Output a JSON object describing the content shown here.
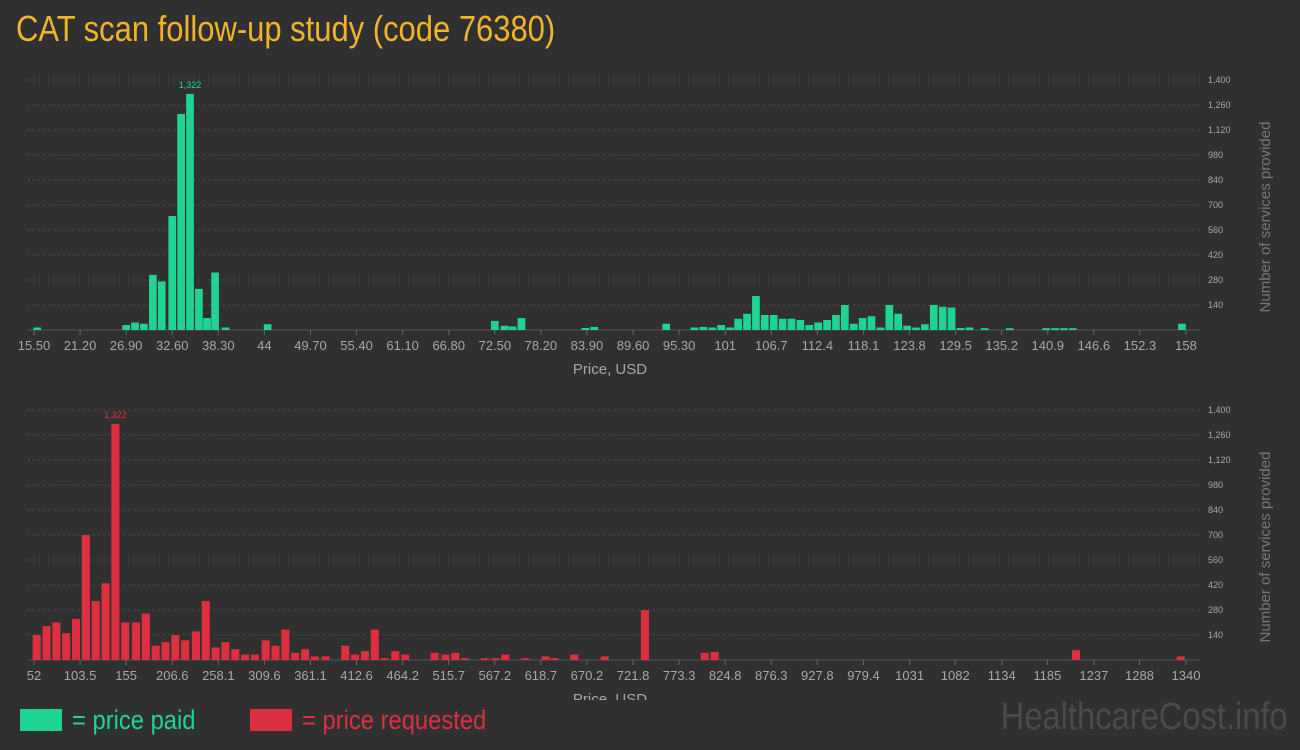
{
  "title": "CAT scan follow-up study (code 76380)",
  "watermark": "HealthcareCost.info",
  "colors": {
    "background": "#303030",
    "title": "#f0b429",
    "paid": "#1fd493",
    "requested": "#dc3040",
    "grid": "#4a4a4a",
    "text": "#a8a8a8"
  },
  "legend": [
    {
      "label": "= price paid",
      "color": "#1fd493"
    },
    {
      "label": "= price requested",
      "color": "#dc3040"
    }
  ],
  "chart_data": [
    {
      "type": "bar",
      "name": "price paid",
      "color": "#1fd493",
      "xlabel": "Price, USD",
      "ylabel": "Number of services provided",
      "ylim": [
        0,
        1400
      ],
      "yticks": [
        140,
        280,
        420,
        560,
        700,
        840,
        980,
        1120,
        1260,
        1400
      ],
      "ytick_labels": [
        "140",
        "280",
        "420",
        "560",
        "700",
        "840",
        "980",
        "1,120",
        "1,260",
        "1,400"
      ],
      "xlim": [
        15.5,
        158.0
      ],
      "xticks": [
        15.5,
        21.2,
        26.9,
        32.6,
        38.3,
        44.0,
        49.7,
        55.4,
        61.1,
        66.8,
        72.5,
        78.2,
        83.9,
        89.6,
        95.3,
        101.0,
        106.7,
        112.4,
        118.1,
        123.8,
        129.5,
        135.2,
        140.9,
        146.6,
        152.3,
        158.0
      ],
      "xtick_labels": [
        "15.50",
        "21.20",
        "26.90",
        "32.60",
        "38.30",
        "44",
        "49.70",
        "55.40",
        "61.10",
        "66.80",
        "72.50",
        "78.20",
        "83.90",
        "89.60",
        "95.30",
        "101",
        "106.7",
        "112.4",
        "118.1",
        "123.8",
        "129.5",
        "135.2",
        "140.9",
        "146.6",
        "152.3",
        "158"
      ],
      "peak_label": "1,322",
      "bar_width": 1.0,
      "x": [
        15.9,
        26.9,
        28.0,
        29.1,
        30.2,
        31.3,
        32.6,
        33.7,
        34.8,
        35.9,
        36.9,
        37.9,
        39.2,
        44.4,
        72.5,
        73.7,
        74.7,
        75.8,
        83.7,
        84.8,
        93.7,
        97.2,
        98.3,
        99.4,
        100.5,
        101.6,
        102.6,
        103.7,
        104.8,
        105.9,
        107.0,
        108.1,
        109.2,
        110.3,
        111.4,
        112.5,
        113.6,
        114.7,
        115.8,
        116.9,
        118.0,
        119.1,
        120.2,
        121.3,
        122.4,
        123.5,
        124.6,
        125.7,
        126.8,
        127.9,
        129.0,
        130.1,
        131.2,
        133.1,
        136.2,
        140.7,
        141.8,
        142.9,
        144.0,
        157.5
      ],
      "values": [
        14,
        28,
        42,
        35,
        309,
        272,
        638,
        1210,
        1322,
        230,
        67,
        322,
        14,
        32,
        51,
        24,
        20,
        67,
        11,
        17,
        35,
        14,
        17,
        14,
        28,
        14,
        63,
        91,
        190,
        84,
        84,
        63,
        63,
        56,
        28,
        42,
        56,
        84,
        140,
        35,
        67,
        77,
        14,
        140,
        91,
        24,
        14,
        32,
        140,
        130,
        126,
        11,
        14,
        10,
        10,
        10,
        10,
        10,
        10,
        35
      ]
    },
    {
      "type": "bar",
      "name": "price requested",
      "color": "#dc3040",
      "xlabel": "Price, USD",
      "ylabel": "Number of services provided",
      "ylim": [
        0,
        1400
      ],
      "yticks": [
        140,
        280,
        420,
        560,
        700,
        840,
        980,
        1120,
        1260,
        1400
      ],
      "ytick_labels": [
        "140",
        "280",
        "420",
        "560",
        "700",
        "840",
        "980",
        "1,120",
        "1,260",
        "1,400"
      ],
      "xlim": [
        52,
        1340
      ],
      "xticks": [
        52,
        103.5,
        155,
        206.6,
        258.1,
        309.6,
        361.1,
        412.6,
        464.2,
        515.7,
        567.2,
        618.7,
        670.2,
        721.8,
        773.3,
        824.8,
        876.3,
        927.8,
        979.4,
        1031,
        1082,
        1134,
        1185,
        1237,
        1288,
        1340
      ],
      "xtick_labels": [
        "52",
        "103.5",
        "155",
        "206.6",
        "258.1",
        "309.6",
        "361.1",
        "412.6",
        "464.2",
        "515.7",
        "567.2",
        "618.7",
        "670.2",
        "721.8",
        "773.3",
        "824.8",
        "876.3",
        "927.8",
        "979.4",
        "1031",
        "1082",
        "1134",
        "1185",
        "1237",
        "1288",
        "1340"
      ],
      "peak_label": "1,322",
      "bar_width": 9.5,
      "x": [
        55,
        66,
        77,
        88,
        99,
        110,
        121,
        132,
        143,
        154,
        166,
        177,
        188,
        199,
        210,
        221,
        233,
        244,
        255,
        266,
        277,
        288,
        299,
        311,
        322,
        333,
        344,
        355,
        366,
        378,
        400,
        411,
        422,
        433,
        444,
        456,
        467,
        500,
        512,
        523,
        534,
        556,
        568,
        579,
        601,
        624,
        634,
        656,
        690,
        735,
        802,
        813,
        1217,
        1334
      ],
      "values": [
        140,
        190,
        210,
        150,
        230,
        700,
        330,
        430,
        1322,
        210,
        210,
        260,
        80,
        100,
        140,
        110,
        160,
        330,
        70,
        100,
        60,
        30,
        30,
        110,
        80,
        170,
        40,
        60,
        20,
        20,
        80,
        30,
        50,
        170,
        10,
        50,
        30,
        40,
        30,
        40,
        10,
        10,
        10,
        30,
        10,
        20,
        10,
        30,
        20,
        280,
        40,
        45,
        55,
        20
      ]
    }
  ]
}
